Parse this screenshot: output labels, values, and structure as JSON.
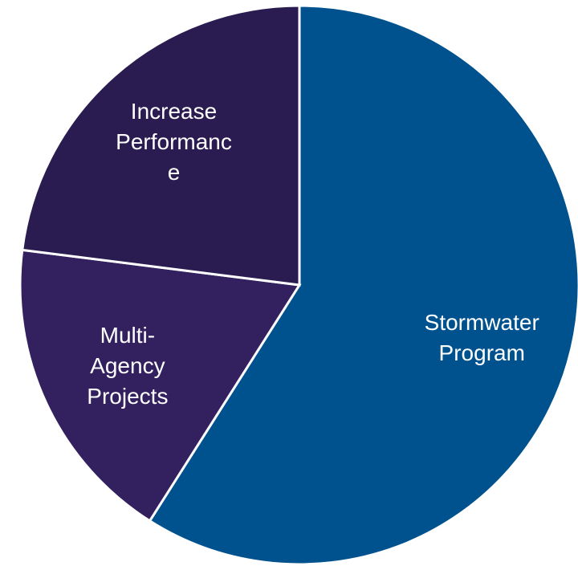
{
  "chart_data": {
    "type": "pie",
    "categories": [
      "Stormwater Program",
      "Multi-Agency Projects",
      "Increase Performance"
    ],
    "values": [
      59,
      18,
      23
    ],
    "colors": [
      "#00528f",
      "#33205f",
      "#2a1b51"
    ]
  }
}
